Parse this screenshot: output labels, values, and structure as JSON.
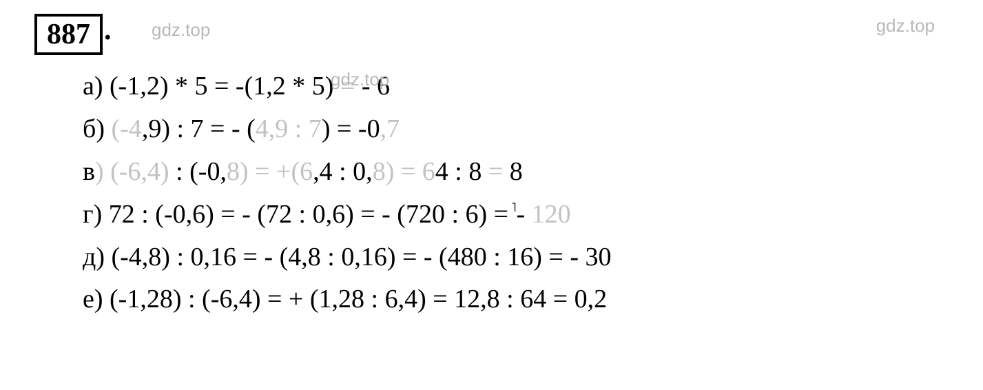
{
  "problem": {
    "number": "887",
    "dot": "."
  },
  "watermarks": {
    "text": "gdz.top"
  },
  "colors": {
    "text": "#000000",
    "faded": "#c2c2c2",
    "watermark": "#b8b8b8",
    "background": "#ffffff",
    "border": "#000000"
  },
  "typography": {
    "equation_fontsize": 38,
    "number_fontsize": 42,
    "watermark_fontsize": 26,
    "font_family": "Times New Roman"
  },
  "equations": {
    "a": {
      "label": "а)",
      "part1": "(-1,2) * 5 = -(1,2 * 5)",
      "faded_end": " = ",
      "result": "- 6"
    },
    "b": {
      "label": "б)",
      "p1_faded": " (-4",
      "p1_norm": ",9) : 7 = - (",
      "p2_faded": "4,9 : 7",
      "p2_norm": ") = -0",
      "p3_faded": ",7"
    },
    "c": {
      "label": "в",
      "brace_faded": ") (-6,4) ",
      "norm1": ": (-0,",
      "faded2": "8) = +(6",
      "norm2": ",4 : 0,",
      "faded3": "8) = 6",
      "norm3": "4 : 8",
      "faded4": " = ",
      "result": "8"
    },
    "d": {
      "label": "г)",
      "norm1": " 72 : (-0,6) = - (72 : 0,6) = - (720 : 6) =",
      "tick": " ˥",
      "norm2": "- ",
      "result_faded": "120"
    },
    "e": {
      "label": "д)",
      "text": " (-4,8) : 0,16 = - (4,8 : 0,16) = - (480 : 16) = - 30"
    },
    "f": {
      "label": "е)",
      "text": " (-1,28) : (-6,4) = + (1,28 : 6,4) = 12,8 : 64 = 0,2"
    }
  }
}
